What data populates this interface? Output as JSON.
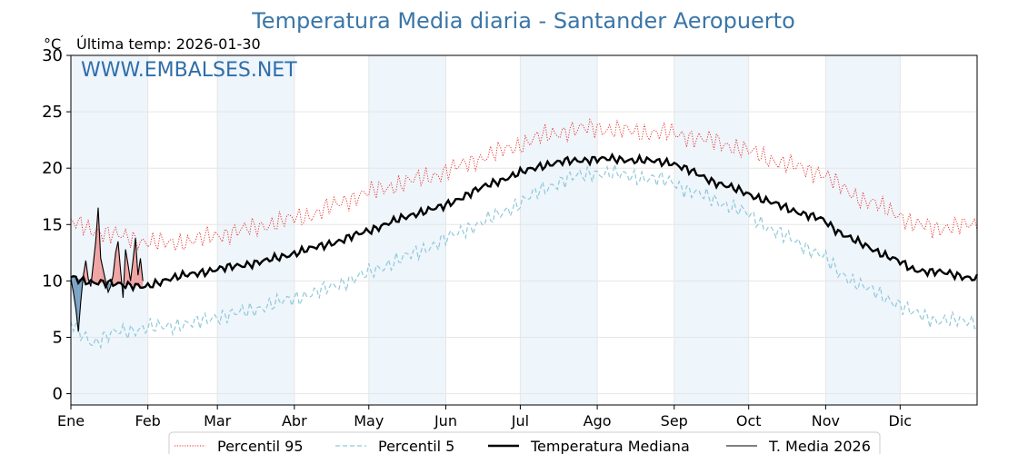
{
  "chart_data": {
    "type": "line",
    "title": "Temperatura Media diaria - Santander Aeropuerto",
    "unit_label": "°C",
    "last_temp_label": "Última temp: 2026-01-30",
    "watermark": "WWW.EMBALSES.NET",
    "ylim": [
      -1,
      30
    ],
    "yticks": [
      0,
      5,
      10,
      15,
      20,
      25,
      30
    ],
    "months": [
      "Ene",
      "Feb",
      "Mar",
      "Abr",
      "May",
      "Jun",
      "Jul",
      "Ago",
      "Sep",
      "Oct",
      "Nov",
      "Dic"
    ],
    "month_start_days": [
      1,
      32,
      60,
      91,
      121,
      152,
      182,
      213,
      244,
      274,
      305,
      335
    ],
    "xlim_days": [
      1,
      366
    ],
    "grid": true,
    "shaded_months": [
      "Ene",
      "Mar",
      "May",
      "Jul",
      "Sep",
      "Nov"
    ],
    "legend_position": "bottom-center",
    "colors": {
      "p95": "#e8281e",
      "p5": "#8ec9dc",
      "median": "#000000",
      "current": "#000000",
      "above_fill": "#f0a3a3",
      "below_fill": "#7aa2c4",
      "title": "#3a76a8",
      "band": "#eef5fb"
    },
    "series": [
      {
        "name": "Percentil 95",
        "style": "dotted-red",
        "x": [
          1,
          10,
          20,
          31,
          40,
          50,
          59,
          70,
          80,
          90,
          100,
          110,
          120,
          130,
          140,
          151,
          160,
          170,
          181,
          190,
          200,
          212,
          220,
          230,
          243,
          250,
          260,
          273,
          280,
          290,
          304,
          310,
          320,
          334,
          340,
          350,
          366
        ],
        "values": [
          15.2,
          14.5,
          14.0,
          13.5,
          13.3,
          13.6,
          14.0,
          14.5,
          15.0,
          15.5,
          16.0,
          17.0,
          17.8,
          18.4,
          19.0,
          19.6,
          20.4,
          21.2,
          22.0,
          22.8,
          23.3,
          23.6,
          23.4,
          23.2,
          23.1,
          22.8,
          22.4,
          21.6,
          21.0,
          20.3,
          19.5,
          18.5,
          17.2,
          16.0,
          15.0,
          14.7,
          15.0
        ]
      },
      {
        "name": "Percentil 5",
        "style": "dashed-lightblue",
        "x": [
          1,
          10,
          20,
          31,
          40,
          50,
          59,
          70,
          80,
          90,
          100,
          110,
          120,
          130,
          140,
          151,
          160,
          170,
          181,
          190,
          200,
          212,
          220,
          230,
          243,
          250,
          260,
          273,
          280,
          290,
          304,
          310,
          320,
          334,
          340,
          350,
          366
        ],
        "values": [
          6.2,
          4.5,
          5.5,
          5.8,
          6.0,
          6.2,
          6.8,
          7.2,
          7.8,
          8.4,
          9.0,
          9.8,
          10.6,
          11.6,
          12.5,
          13.6,
          14.6,
          15.5,
          16.8,
          18.0,
          19.0,
          19.6,
          19.5,
          19.2,
          18.8,
          18.0,
          17.2,
          16.0,
          15.0,
          13.8,
          12.2,
          10.8,
          9.5,
          8.0,
          7.2,
          6.5,
          6.4
        ]
      },
      {
        "name": "Temperatura Mediana",
        "style": "thick-black",
        "x": [
          1,
          10,
          20,
          31,
          40,
          50,
          59,
          70,
          80,
          90,
          100,
          110,
          120,
          130,
          140,
          151,
          160,
          170,
          181,
          190,
          200,
          212,
          220,
          230,
          243,
          250,
          260,
          273,
          280,
          290,
          304,
          310,
          320,
          334,
          340,
          350,
          366
        ],
        "values": [
          10.4,
          9.8,
          9.8,
          9.4,
          10.2,
          10.6,
          11.0,
          11.4,
          11.8,
          12.4,
          13.0,
          13.6,
          14.4,
          15.2,
          16.0,
          16.6,
          17.6,
          18.6,
          19.5,
          20.2,
          20.6,
          20.8,
          20.8,
          20.7,
          20.5,
          19.8,
          18.8,
          17.8,
          17.2,
          16.4,
          15.4,
          14.4,
          13.2,
          11.8,
          11.0,
          10.8,
          10.2
        ]
      },
      {
        "name": "T. Media 2026",
        "style": "thin-black",
        "x": [
          1,
          2,
          3,
          4,
          5,
          6,
          7,
          8,
          9,
          10,
          11,
          12,
          13,
          14,
          15,
          16,
          17,
          18,
          19,
          20,
          21,
          22,
          23,
          24,
          25,
          26,
          27,
          28,
          29,
          30
        ],
        "values": [
          10.2,
          9.0,
          7.5,
          5.5,
          8.2,
          10.5,
          11.8,
          10.2,
          9.5,
          11.5,
          13.5,
          16.5,
          12.0,
          11.0,
          10.0,
          9.0,
          9.5,
          10.5,
          12.5,
          13.5,
          11.0,
          8.5,
          12.8,
          11.5,
          10.0,
          11.8,
          13.8,
          10.5,
          12.0,
          10.0
        ]
      }
    ]
  }
}
